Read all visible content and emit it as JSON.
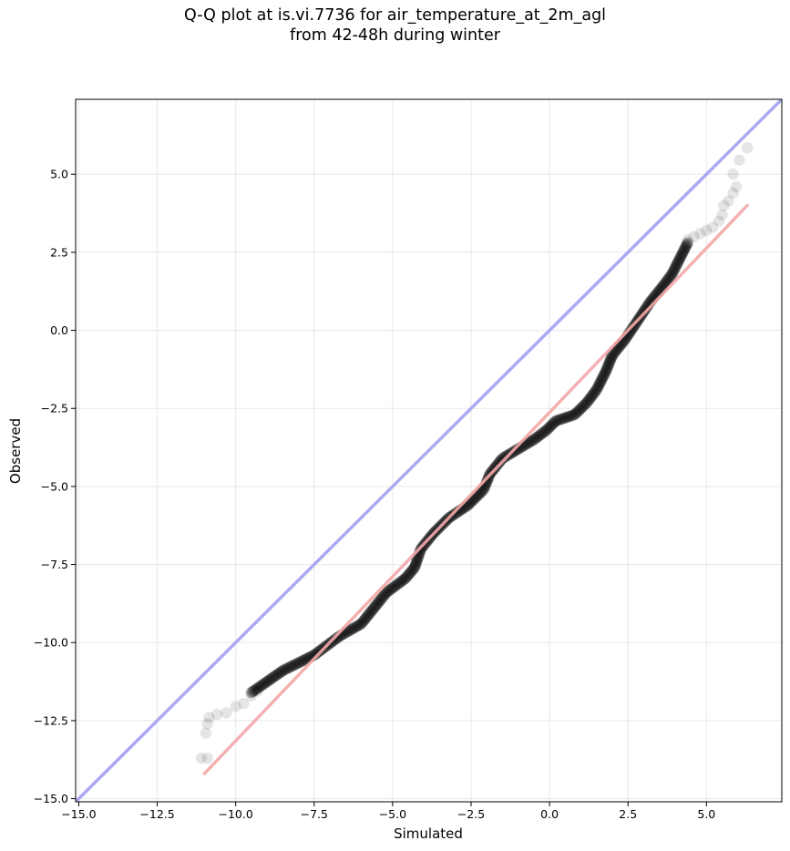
{
  "chart_data": {
    "type": "scatter",
    "title_lines": [
      "Q-Q plot at is.vi.7736 for air_temperature_at_2m_agl",
      "from 42-48h during winter"
    ],
    "xlabel": "Simulated",
    "ylabel": "Observed",
    "xlim": [
      -15.1,
      7.4
    ],
    "ylim": [
      -15.1,
      7.4
    ],
    "x_ticks": [
      -15.0,
      -12.5,
      -10.0,
      -7.5,
      -5.0,
      -2.5,
      0.0,
      2.5,
      5.0
    ],
    "y_ticks": [
      -15.0,
      -12.5,
      -10.0,
      -7.5,
      -5.0,
      -2.5,
      0.0,
      2.5,
      5.0
    ],
    "x_tick_labels": [
      "−15.0",
      "−12.5",
      "−10.0",
      "−7.5",
      "−5.0",
      "−2.5",
      "0.0",
      "2.5",
      "5.0"
    ],
    "y_tick_labels": [
      "−15.0",
      "−12.5",
      "−10.0",
      "−7.5",
      "−5.0",
      "−2.5",
      "0.0",
      "2.5",
      "5.0"
    ],
    "grid": true,
    "identity_line": {
      "color": "#aaaaf2",
      "from": [
        -15.1,
        -15.1
      ],
      "to": [
        7.4,
        7.4
      ]
    },
    "fit_line": {
      "color": "#f2a8a8",
      "from": [
        -11.0,
        -14.2
      ],
      "to": [
        6.3,
        4.0
      ]
    },
    "point_color": "#000000",
    "tail_points": [
      {
        "x": -11.1,
        "y": -13.7
      },
      {
        "x": -10.9,
        "y": -13.7
      },
      {
        "x": -10.95,
        "y": -12.9
      },
      {
        "x": -10.9,
        "y": -12.6
      },
      {
        "x": -10.85,
        "y": -12.4
      },
      {
        "x": -10.6,
        "y": -12.3
      },
      {
        "x": -10.3,
        "y": -12.25
      },
      {
        "x": -10.0,
        "y": -12.05
      },
      {
        "x": -9.75,
        "y": -11.95
      },
      {
        "x": -9.5,
        "y": -11.7
      },
      {
        "x": -9.3,
        "y": -11.55
      },
      {
        "x": 4.4,
        "y": 2.9
      },
      {
        "x": 4.6,
        "y": 3.0
      },
      {
        "x": 4.8,
        "y": 3.1
      },
      {
        "x": 5.0,
        "y": 3.2
      },
      {
        "x": 5.2,
        "y": 3.3
      },
      {
        "x": 5.4,
        "y": 3.5
      },
      {
        "x": 5.5,
        "y": 3.7
      },
      {
        "x": 5.55,
        "y": 4.0
      },
      {
        "x": 5.7,
        "y": 4.15
      },
      {
        "x": 5.85,
        "y": 4.4
      },
      {
        "x": 5.95,
        "y": 4.6
      },
      {
        "x": 5.85,
        "y": 5.0
      },
      {
        "x": 6.05,
        "y": 5.45
      },
      {
        "x": 6.3,
        "y": 5.85
      }
    ],
    "curve_knots": [
      [
        -9.5,
        -11.6
      ],
      [
        -8.5,
        -10.9
      ],
      [
        -7.5,
        -10.4
      ],
      [
        -6.7,
        -9.8
      ],
      [
        -6.0,
        -9.4
      ],
      [
        -5.6,
        -8.9
      ],
      [
        -5.2,
        -8.4
      ],
      [
        -4.6,
        -7.95
      ],
      [
        -4.3,
        -7.6
      ],
      [
        -4.1,
        -7.0
      ],
      [
        -3.7,
        -6.5
      ],
      [
        -3.2,
        -6.0
      ],
      [
        -2.6,
        -5.6
      ],
      [
        -2.1,
        -5.1
      ],
      [
        -1.9,
        -4.6
      ],
      [
        -1.5,
        -4.1
      ],
      [
        -1.0,
        -3.8
      ],
      [
        -0.5,
        -3.5
      ],
      [
        -0.1,
        -3.2
      ],
      [
        0.2,
        -2.9
      ],
      [
        0.8,
        -2.7
      ],
      [
        1.2,
        -2.3
      ],
      [
        1.5,
        -1.9
      ],
      [
        1.8,
        -1.3
      ],
      [
        2.0,
        -0.8
      ],
      [
        2.4,
        -0.3
      ],
      [
        2.8,
        0.3
      ],
      [
        3.2,
        0.9
      ],
      [
        3.6,
        1.4
      ],
      [
        3.9,
        1.8
      ],
      [
        4.2,
        2.4
      ],
      [
        4.4,
        2.8
      ]
    ],
    "curve_point_count": 330
  }
}
